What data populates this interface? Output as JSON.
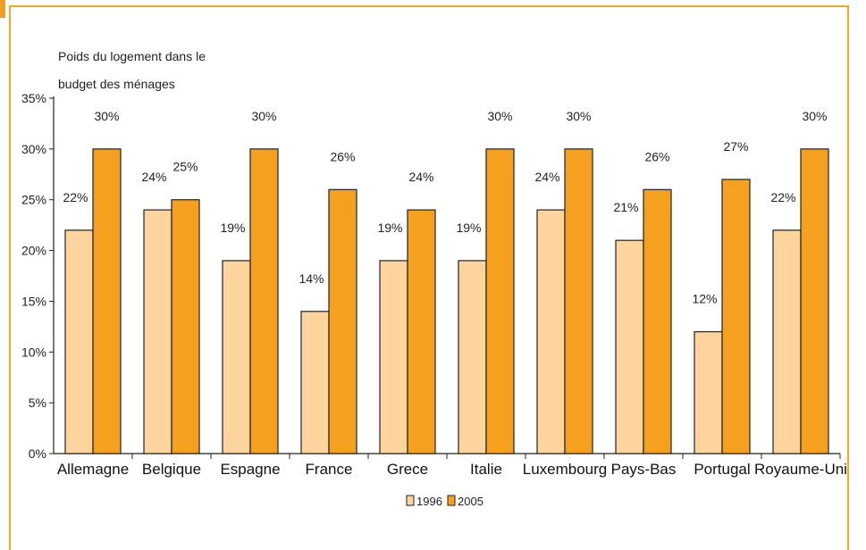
{
  "chart_data": {
    "type": "bar",
    "ylabel_lines": [
      "Poids du logement dans le",
      "budget des ménages"
    ],
    "categories": [
      "Allemagne",
      "Belgique",
      "Espagne",
      "France",
      "Grece",
      "Italie",
      "Luxembourg",
      "Pays-Bas",
      "Portugal",
      "Royaume-Uni"
    ],
    "series": [
      {
        "name": "1996",
        "values": [
          22,
          24,
          19,
          14,
          19,
          19,
          24,
          21,
          12,
          22
        ],
        "labels": [
          "22%",
          "24%",
          "19%",
          "14%",
          "19%",
          "19%",
          "24%",
          "21%",
          "12%",
          "22%"
        ],
        "color": "#fdd49e"
      },
      {
        "name": "2005",
        "values": [
          30,
          25,
          30,
          26,
          24,
          30,
          30,
          26,
          27,
          30
        ],
        "labels": [
          "30%",
          "25%",
          "30%",
          "26%",
          "24%",
          "30%",
          "30%",
          "26%",
          "27%",
          "30%"
        ],
        "color": "#f5a01e"
      }
    ],
    "yticks": [
      "0%",
      "5%",
      "10%",
      "15%",
      "20%",
      "25%",
      "30%",
      "35%"
    ],
    "ylim": [
      0,
      35
    ],
    "grid": false,
    "legend_position": "bottom-center"
  },
  "colors": {
    "frame": "#f5a623",
    "axis": "#222222",
    "bar_stroke": "#222222"
  }
}
